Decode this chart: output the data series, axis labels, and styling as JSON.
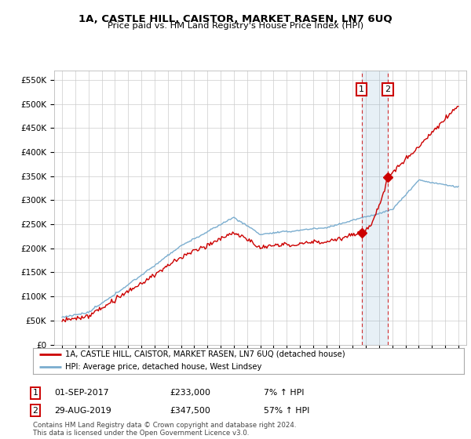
{
  "title": "1A, CASTLE HILL, CAISTOR, MARKET RASEN, LN7 6UQ",
  "subtitle": "Price paid vs. HM Land Registry's House Price Index (HPI)",
  "ylim": [
    0,
    570000
  ],
  "yticks": [
    0,
    50000,
    100000,
    150000,
    200000,
    250000,
    300000,
    350000,
    400000,
    450000,
    500000,
    550000
  ],
  "ytick_labels": [
    "£0",
    "£50K",
    "£100K",
    "£150K",
    "£200K",
    "£250K",
    "£300K",
    "£350K",
    "£400K",
    "£450K",
    "£500K",
    "£550K"
  ],
  "legend_line1": "1A, CASTLE HILL, CAISTOR, MARKET RASEN, LN7 6UQ (detached house)",
  "legend_line2": "HPI: Average price, detached house, West Lindsey",
  "sale1_date": "01-SEP-2017",
  "sale1_price": "£233,000",
  "sale1_change": "7% ↑ HPI",
  "sale2_date": "29-AUG-2019",
  "sale2_price": "£347,500",
  "sale2_change": "57% ↑ HPI",
  "footer": "Contains HM Land Registry data © Crown copyright and database right 2024.\nThis data is licensed under the Open Government Licence v3.0.",
  "hpi_color": "#7aadcf",
  "price_color": "#cc0000",
  "background_color": "#ffffff",
  "grid_color": "#cccccc",
  "sale1_x": 2017.67,
  "sale2_x": 2019.66,
  "sale1_y": 233000,
  "sale2_y": 347500,
  "xlim_left": 1994.4,
  "xlim_right": 2025.6
}
